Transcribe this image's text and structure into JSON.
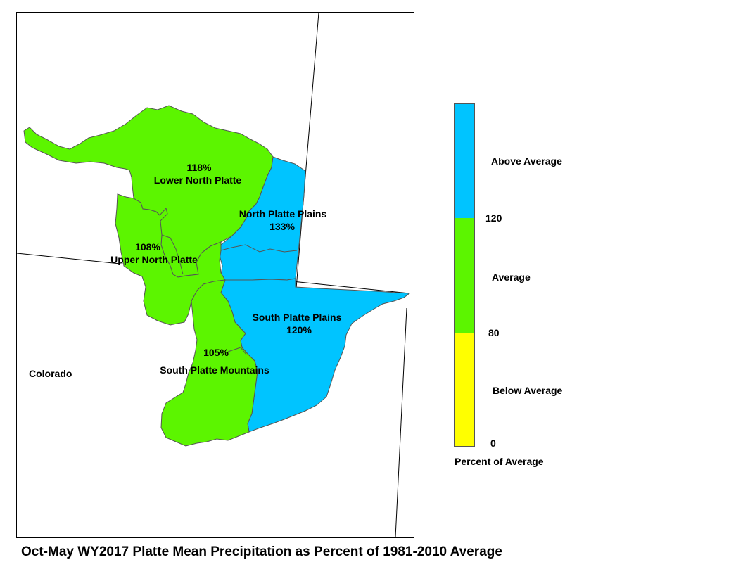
{
  "title": "Oct-May WY2017 Platte Mean Precipitation as Percent of 1981-2010 Average",
  "state_label": "Colorado",
  "colors": {
    "above_average": "#00c4ff",
    "average": "#5cf500",
    "below_average": "#ffff00",
    "outline": "#555555"
  },
  "basins": [
    {
      "name": "Lower North Platte",
      "percent": "118%",
      "category": "average"
    },
    {
      "name": "North Platte Plains",
      "percent": "133%",
      "category": "above_average"
    },
    {
      "name": "Upper North Platte",
      "percent": "108%",
      "category": "average"
    },
    {
      "name": "South Platte Plains",
      "percent": "120%",
      "category": "above_average"
    },
    {
      "name": "South Platte Mountains",
      "percent": "105%",
      "category": "average"
    }
  ],
  "legend": {
    "caption": "Percent of Average",
    "categories": [
      {
        "label": "Above Average",
        "min": 120,
        "max": null,
        "color": "#00c4ff"
      },
      {
        "label": "Average",
        "min": 80,
        "max": 120,
        "color": "#5cf500"
      },
      {
        "label": "Below Average",
        "min": 0,
        "max": 80,
        "color": "#ffff00"
      }
    ],
    "tick_labels": [
      "120",
      "80",
      "0"
    ]
  }
}
